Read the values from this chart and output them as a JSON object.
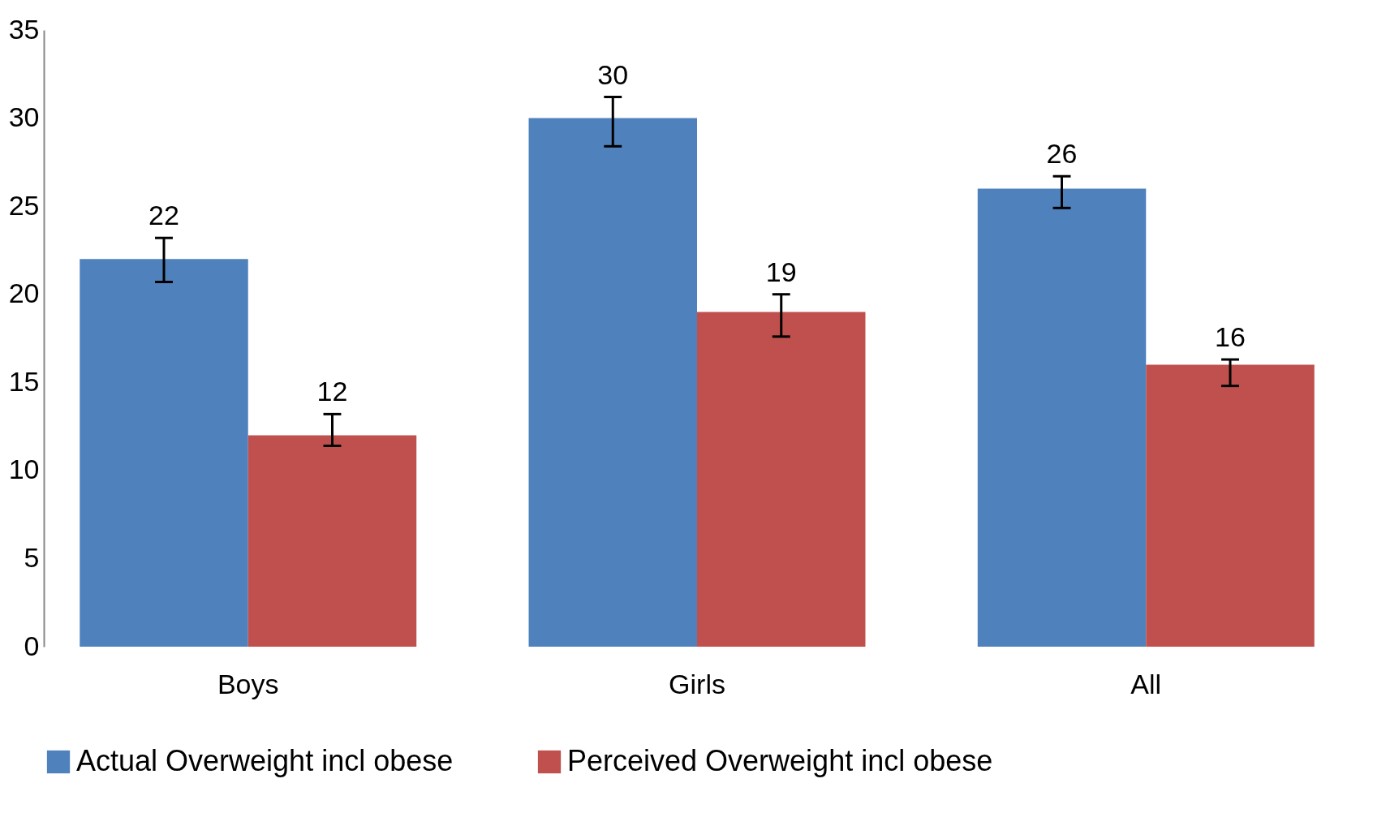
{
  "chart_data": {
    "type": "bar",
    "categories": [
      "Boys",
      "Girls",
      "All"
    ],
    "series": [
      {
        "name": "Actual Overweight incl obese",
        "color": "#4f81bd",
        "values": [
          22,
          30,
          26
        ],
        "errors": [
          [
            20.7,
            23.2
          ],
          [
            28.4,
            31.2
          ],
          [
            24.9,
            26.7
          ]
        ]
      },
      {
        "name": "Perceived Overweight incl obese",
        "color": "#c0504d",
        "values": [
          12,
          19,
          16
        ],
        "errors": [
          [
            11.4,
            13.2
          ],
          [
            17.6,
            20.0
          ],
          [
            14.8,
            16.3
          ]
        ]
      }
    ],
    "ylim": [
      0,
      35
    ],
    "yticks": [
      0,
      5,
      10,
      15,
      20,
      25,
      30,
      35
    ],
    "data_labels": true,
    "legend": "bottom",
    "grid": false
  }
}
